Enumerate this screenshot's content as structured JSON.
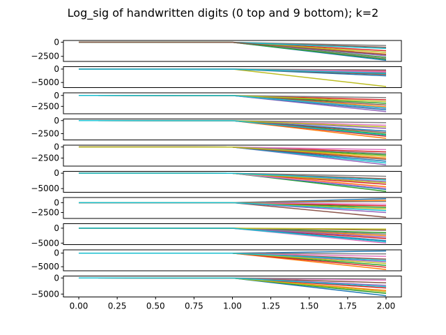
{
  "chart_data": {
    "type": "line",
    "title": "Log_sig of handwritten digits (0 top and 9 bottom); k=2",
    "xlabel": "",
    "ylabel": "",
    "x": [
      0.0,
      1.0,
      2.0
    ],
    "xlim": [
      -0.1,
      2.1
    ],
    "x_ticks": [
      {
        "value": 0.0,
        "label": "0.00"
      },
      {
        "value": 0.25,
        "label": "0.25"
      },
      {
        "value": 0.5,
        "label": "0.50"
      },
      {
        "value": 0.75,
        "label": "0.75"
      },
      {
        "value": 1.0,
        "label": "1.00"
      },
      {
        "value": 1.25,
        "label": "1.25"
      },
      {
        "value": 1.5,
        "label": "1.50"
      },
      {
        "value": 1.75,
        "label": "1.75"
      },
      {
        "value": 2.0,
        "label": "2.00"
      }
    ],
    "grid": false,
    "legend": "none",
    "series_colors": [
      "#1f77b4",
      "#ff7f0e",
      "#2ca02c",
      "#d62728",
      "#9467bd",
      "#8c564b",
      "#e377c2",
      "#7f7f7f",
      "#bcbd22",
      "#17becf"
    ],
    "panels": [
      {
        "digit": 0,
        "ylim": [
          -3400,
          300
        ],
        "yticks": [
          {
            "value": 0,
            "label": "0"
          },
          {
            "value": -2500,
            "label": "−2500"
          }
        ],
        "series": [
          {
            "color": "#1f77b4",
            "values": [
              0,
              -20,
              -3200
            ]
          },
          {
            "color": "#ff7f0e",
            "values": [
              0,
              -20,
              -2100
            ]
          },
          {
            "color": "#2ca02c",
            "values": [
              0,
              -20,
              -2700
            ]
          },
          {
            "color": "#d62728",
            "values": [
              0,
              -20,
              -1500
            ]
          },
          {
            "color": "#9467bd",
            "values": [
              0,
              -20,
              -2400
            ]
          },
          {
            "color": "#8c564b",
            "values": [
              0,
              -20,
              -900
            ]
          },
          {
            "color": "#e377c2",
            "values": [
              0,
              -20,
              -2900
            ]
          },
          {
            "color": "#7f7f7f",
            "values": [
              0,
              -20,
              -600
            ]
          },
          {
            "color": "#bcbd22",
            "values": [
              0,
              -20,
              -1800
            ]
          },
          {
            "color": "#17becf",
            "values": [
              0,
              -20,
              -1100
            ]
          },
          {
            "color": "#2ca02c",
            "values": [
              0,
              -20,
              -3000
            ]
          },
          {
            "color": "#8c564b",
            "values": [
              0,
              -20,
              -2200
            ]
          }
        ]
      },
      {
        "digit": 1,
        "ylim": [
          -6900,
          900
        ],
        "yticks": [
          {
            "value": 0,
            "label": "0"
          },
          {
            "value": -5000,
            "label": "−5000"
          }
        ],
        "series": [
          {
            "color": "#bcbd22",
            "values": [
              0,
              -20,
              -6500
            ]
          },
          {
            "color": "#1f77b4",
            "values": [
              0,
              -20,
              -2500
            ]
          },
          {
            "color": "#ff7f0e",
            "values": [
              0,
              -20,
              -1200
            ]
          },
          {
            "color": "#2ca02c",
            "values": [
              0,
              -20,
              -1800
            ]
          },
          {
            "color": "#d62728",
            "values": [
              0,
              -20,
              -600
            ]
          },
          {
            "color": "#9467bd",
            "values": [
              0,
              -20,
              -1400
            ]
          },
          {
            "color": "#8c564b",
            "values": [
              0,
              -20,
              -2000
            ]
          },
          {
            "color": "#e377c2",
            "values": [
              0,
              -20,
              -900
            ]
          },
          {
            "color": "#7f7f7f",
            "values": [
              0,
              -20,
              -300
            ]
          },
          {
            "color": "#17becf",
            "values": [
              0,
              -20,
              -1600
            ]
          }
        ]
      },
      {
        "digit": 2,
        "ylim": [
          -4200,
          600
        ],
        "yticks": [
          {
            "value": 0,
            "label": "0"
          },
          {
            "value": -2500,
            "label": "−2500"
          }
        ],
        "series": [
          {
            "color": "#9467bd",
            "values": [
              0,
              -20,
              -3700
            ]
          },
          {
            "color": "#1f77b4",
            "values": [
              0,
              -20,
              -3300
            ]
          },
          {
            "color": "#ff7f0e",
            "values": [
              0,
              -20,
              -2600
            ]
          },
          {
            "color": "#2ca02c",
            "values": [
              0,
              -20,
              -1800
            ]
          },
          {
            "color": "#d62728",
            "values": [
              0,
              -20,
              -1000
            ]
          },
          {
            "color": "#8c564b",
            "values": [
              0,
              -20,
              -2200
            ]
          },
          {
            "color": "#e377c2",
            "values": [
              0,
              -20,
              -3000
            ]
          },
          {
            "color": "#7f7f7f",
            "values": [
              0,
              -20,
              -500
            ]
          },
          {
            "color": "#bcbd22",
            "values": [
              0,
              -20,
              -1400
            ]
          },
          {
            "color": "#17becf",
            "values": [
              0,
              -20,
              -2900
            ]
          }
        ]
      },
      {
        "digit": 3,
        "ylim": [
          -3700,
          300
        ],
        "yticks": [
          {
            "value": 0,
            "label": "0"
          },
          {
            "value": -2500,
            "label": "−2500"
          }
        ],
        "series": [
          {
            "color": "#ff7f0e",
            "values": [
              0,
              -20,
              -3400
            ]
          },
          {
            "color": "#d62728",
            "values": [
              0,
              -20,
              -3000
            ]
          },
          {
            "color": "#2ca02c",
            "values": [
              0,
              -20,
              -2600
            ]
          },
          {
            "color": "#1f77b4",
            "values": [
              0,
              -20,
              -2000
            ]
          },
          {
            "color": "#9467bd",
            "values": [
              0,
              -20,
              -1500
            ]
          },
          {
            "color": "#8c564b",
            "values": [
              0,
              -20,
              -2300
            ]
          },
          {
            "color": "#e377c2",
            "values": [
              0,
              -20,
              -900
            ]
          },
          {
            "color": "#7f7f7f",
            "values": [
              0,
              -20,
              -400
            ]
          },
          {
            "color": "#bcbd22",
            "values": [
              0,
              -20,
              -1200
            ]
          },
          {
            "color": "#17becf",
            "values": [
              0,
              -20,
              -2800
            ]
          }
        ]
      },
      {
        "digit": 4,
        "ylim": [
          -4300,
          400
        ],
        "yticks": [
          {
            "value": 0,
            "label": "0"
          },
          {
            "value": -2500,
            "label": "−2500"
          }
        ],
        "series": [
          {
            "color": "#9467bd",
            "values": [
              0,
              -20,
              -4000
            ]
          },
          {
            "color": "#17becf",
            "values": [
              0,
              -20,
              -3600
            ]
          },
          {
            "color": "#1f77b4",
            "values": [
              0,
              -20,
              -3200
            ]
          },
          {
            "color": "#ff7f0e",
            "values": [
              0,
              -20,
              -2500
            ]
          },
          {
            "color": "#2ca02c",
            "values": [
              0,
              -20,
              -1800
            ]
          },
          {
            "color": "#d62728",
            "values": [
              0,
              -20,
              -1100
            ]
          },
          {
            "color": "#8c564b",
            "values": [
              0,
              -20,
              -2800
            ]
          },
          {
            "color": "#e377c2",
            "values": [
              0,
              -20,
              -600
            ]
          },
          {
            "color": "#7f7f7f",
            "values": [
              0,
              -20,
              -1500
            ]
          },
          {
            "color": "#bcbd22",
            "values": [
              0,
              -20,
              -2100
            ]
          }
        ]
      },
      {
        "digit": 5,
        "ylim": [
          -6200,
          600
        ],
        "yticks": [
          {
            "value": 0,
            "label": "0"
          },
          {
            "value": -5000,
            "label": "−5000"
          }
        ],
        "series": [
          {
            "color": "#2ca02c",
            "values": [
              0,
              -20,
              -5900
            ]
          },
          {
            "color": "#1f77b4",
            "values": [
              0,
              -20,
              -5300
            ]
          },
          {
            "color": "#ff7f0e",
            "values": [
              0,
              -20,
              -4400
            ]
          },
          {
            "color": "#d62728",
            "values": [
              0,
              -20,
              -3600
            ]
          },
          {
            "color": "#9467bd",
            "values": [
              0,
              -20,
              -2700
            ]
          },
          {
            "color": "#8c564b",
            "values": [
              0,
              -20,
              -1800
            ]
          },
          {
            "color": "#e377c2",
            "values": [
              0,
              -20,
              -4900
            ]
          },
          {
            "color": "#7f7f7f",
            "values": [
              0,
              -20,
              -1000
            ]
          },
          {
            "color": "#bcbd22",
            "values": [
              0,
              -20,
              -3100
            ]
          },
          {
            "color": "#17becf",
            "values": [
              0,
              -20,
              -2200
            ]
          }
        ]
      },
      {
        "digit": 6,
        "ylim": [
          -4000,
          1300
        ],
        "yticks": [
          {
            "value": 0,
            "label": "0"
          },
          {
            "value": -2500,
            "label": "−2500"
          }
        ],
        "series": [
          {
            "color": "#8c564b",
            "values": [
              0,
              0,
              -3700
            ]
          },
          {
            "color": "#1f77b4",
            "values": [
              0,
              0,
              1000
            ]
          },
          {
            "color": "#ff7f0e",
            "values": [
              0,
              0,
              600
            ]
          },
          {
            "color": "#2ca02c",
            "values": [
              0,
              0,
              -1200
            ]
          },
          {
            "color": "#d62728",
            "values": [
              0,
              0,
              -800
            ]
          },
          {
            "color": "#9467bd",
            "values": [
              0,
              0,
              -2500
            ]
          },
          {
            "color": "#e377c2",
            "values": [
              0,
              0,
              -400
            ]
          },
          {
            "color": "#7f7f7f",
            "values": [
              0,
              0,
              300
            ]
          },
          {
            "color": "#bcbd22",
            "values": [
              0,
              0,
              -1600
            ]
          },
          {
            "color": "#17becf",
            "values": [
              0,
              0,
              -2000
            ]
          }
        ]
      },
      {
        "digit": 7,
        "ylim": [
          -5500,
          1500
        ],
        "yticks": [
          {
            "value": 0,
            "label": "0"
          },
          {
            "value": -5000,
            "label": "−5000"
          }
        ],
        "series": [
          {
            "color": "#e377c2",
            "values": [
              0,
              -50,
              -5000
            ]
          },
          {
            "color": "#d62728",
            "values": [
              0,
              -20,
              -3500
            ]
          },
          {
            "color": "#1f77b4",
            "values": [
              0,
              -20,
              -4200
            ]
          },
          {
            "color": "#ff7f0e",
            "values": [
              0,
              -20,
              -2500
            ]
          },
          {
            "color": "#2ca02c",
            "values": [
              0,
              -20,
              -1500
            ]
          },
          {
            "color": "#9467bd",
            "values": [
              0,
              -20,
              -3000
            ]
          },
          {
            "color": "#8c564b",
            "values": [
              0,
              -20,
              -700
            ]
          },
          {
            "color": "#7f7f7f",
            "values": [
              0,
              -20,
              -2000
            ]
          },
          {
            "color": "#bcbd22",
            "values": [
              0,
              -20,
              -300
            ]
          },
          {
            "color": "#17becf",
            "values": [
              0,
              -20,
              -4600
            ]
          }
        ]
      },
      {
        "digit": 8,
        "ylim": [
          -6500,
          1200
        ],
        "yticks": [
          {
            "value": 0,
            "label": "0"
          },
          {
            "value": -5000,
            "label": "−5000"
          }
        ],
        "series": [
          {
            "color": "#1f77b4",
            "values": [
              0,
              -20,
              800
            ]
          },
          {
            "color": "#ff7f0e",
            "values": [
              0,
              -20,
              -6000
            ]
          },
          {
            "color": "#2ca02c",
            "values": [
              0,
              -20,
              -4500
            ]
          },
          {
            "color": "#d62728",
            "values": [
              0,
              -20,
              -5200
            ]
          },
          {
            "color": "#9467bd",
            "values": [
              0,
              -20,
              -3200
            ]
          },
          {
            "color": "#8c564b",
            "values": [
              0,
              -20,
              -2200
            ]
          },
          {
            "color": "#e377c2",
            "values": [
              0,
              -20,
              -1200
            ]
          },
          {
            "color": "#7f7f7f",
            "values": [
              0,
              -20,
              -300
            ]
          },
          {
            "color": "#bcbd22",
            "values": [
              0,
              -20,
              -3800
            ]
          },
          {
            "color": "#17becf",
            "values": [
              0,
              -20,
              -2700
            ]
          }
        ]
      },
      {
        "digit": 9,
        "ylim": [
          -5900,
          600
        ],
        "yticks": [
          {
            "value": 0,
            "label": "0"
          },
          {
            "value": -5000,
            "label": "−5000"
          }
        ],
        "series": [
          {
            "color": "#1f77b4",
            "values": [
              0,
              -20,
              -5500
            ]
          },
          {
            "color": "#2ca02c",
            "values": [
              0,
              -20,
              -4800
            ]
          },
          {
            "color": "#ff7f0e",
            "values": [
              0,
              -20,
              -3900
            ]
          },
          {
            "color": "#d62728",
            "values": [
              0,
              -20,
              -3100
            ]
          },
          {
            "color": "#9467bd",
            "values": [
              0,
              -20,
              -2300
            ]
          },
          {
            "color": "#8c564b",
            "values": [
              0,
              -20,
              -1500
            ]
          },
          {
            "color": "#e377c2",
            "values": [
              0,
              -20,
              -700
            ]
          },
          {
            "color": "#7f7f7f",
            "values": [
              0,
              -20,
              -300
            ]
          },
          {
            "color": "#bcbd22",
            "values": [
              0,
              -20,
              -4300
            ]
          },
          {
            "color": "#17becf",
            "values": [
              0,
              -20,
              -2700
            ]
          }
        ]
      }
    ]
  }
}
